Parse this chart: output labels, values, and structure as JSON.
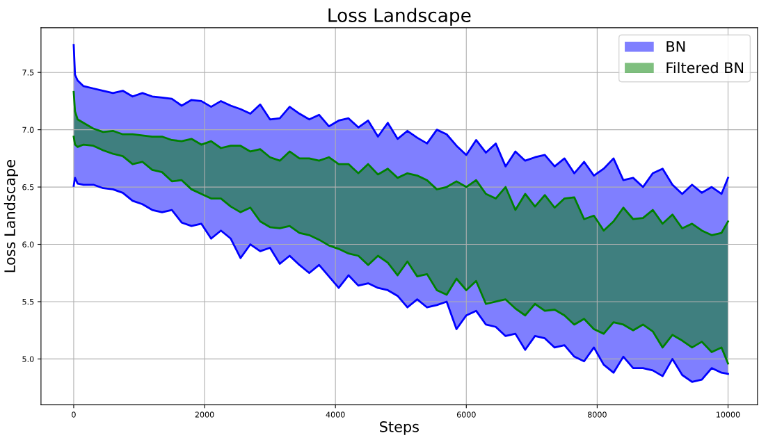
{
  "chart_data": {
    "type": "line",
    "title": "Loss Landscape",
    "xlabel": "Steps",
    "ylabel": "Loss Landscape",
    "xlim": [
      -500,
      10450
    ],
    "ylim": [
      4.6,
      7.89
    ],
    "xticks": [
      0,
      2000,
      4000,
      6000,
      8000,
      10000
    ],
    "yticks": [
      {
        "value": 5,
        "label": "5.0"
      },
      5.5,
      {
        "value": 6,
        "label": "6.0"
      },
      6.5,
      {
        "value": 7,
        "label": "7.0"
      },
      7.5
    ],
    "grid": true,
    "legend": "top right",
    "series": [
      {
        "name": "BN",
        "color": "#0000ff",
        "x": [
          0,
          20,
          60,
          150,
          300,
          450,
          600,
          750,
          900,
          1050,
          1200,
          1350,
          1500,
          1650,
          1800,
          1950,
          2100,
          2250,
          2400,
          2550,
          2700,
          2850,
          3000,
          3150,
          3300,
          3450,
          3600,
          3750,
          3900,
          4050,
          4200,
          4350,
          4500,
          4650,
          4800,
          4950,
          5100,
          5250,
          5400,
          5550,
          5700,
          5850,
          6000,
          6150,
          6300,
          6450,
          6600,
          6750,
          6900,
          7050,
          7200,
          7350,
          7500,
          7650,
          7800,
          7950,
          8100,
          8250,
          8400,
          8550,
          8700,
          8850,
          9000,
          9150,
          9300,
          9450,
          9600,
          9750,
          9900,
          10000
        ],
        "values": [
          7.74,
          7.48,
          7.43,
          7.38,
          7.36,
          7.34,
          7.32,
          7.34,
          7.29,
          7.32,
          7.29,
          7.28,
          7.27,
          7.21,
          7.26,
          7.25,
          7.2,
          7.25,
          7.21,
          7.18,
          7.14,
          7.22,
          7.09,
          7.1,
          7.2,
          7.14,
          7.09,
          7.13,
          7.03,
          7.08,
          7.1,
          7.02,
          7.08,
          6.94,
          7.06,
          6.92,
          6.99,
          6.93,
          6.88,
          7.0,
          6.96,
          6.86,
          6.78,
          6.91,
          6.8,
          6.88,
          6.68,
          6.81,
          6.73,
          6.76,
          6.78,
          6.68,
          6.75,
          6.62,
          6.72,
          6.6,
          6.66,
          6.75,
          6.56,
          6.58,
          6.5,
          6.62,
          6.66,
          6.52,
          6.44,
          6.52,
          6.45,
          6.5,
          6.44,
          6.58
        ],
        "upper": [
          7.74,
          7.48,
          7.43,
          7.38,
          7.36,
          7.34,
          7.32,
          7.34,
          7.29,
          7.32,
          7.29,
          7.28,
          7.27,
          7.21,
          7.26,
          7.25,
          7.2,
          7.25,
          7.21,
          7.18,
          7.14,
          7.22,
          7.09,
          7.1,
          7.2,
          7.14,
          7.09,
          7.13,
          7.03,
          7.08,
          7.1,
          7.02,
          7.08,
          6.94,
          7.06,
          6.92,
          6.99,
          6.93,
          6.88,
          7.0,
          6.96,
          6.86,
          6.78,
          6.91,
          6.8,
          6.88,
          6.68,
          6.81,
          6.73,
          6.76,
          6.78,
          6.68,
          6.75,
          6.62,
          6.72,
          6.6,
          6.66,
          6.75,
          6.56,
          6.58,
          6.5,
          6.62,
          6.66,
          6.52,
          6.44,
          6.52,
          6.45,
          6.5,
          6.44,
          6.58
        ],
        "lower": [
          6.51,
          6.58,
          6.53,
          6.52,
          6.52,
          6.49,
          6.48,
          6.45,
          6.38,
          6.35,
          6.3,
          6.28,
          6.3,
          6.19,
          6.16,
          6.18,
          6.05,
          6.12,
          6.05,
          5.88,
          6.0,
          5.94,
          5.97,
          5.83,
          5.9,
          5.82,
          5.75,
          5.82,
          5.72,
          5.62,
          5.73,
          5.64,
          5.66,
          5.62,
          5.6,
          5.55,
          5.45,
          5.52,
          5.45,
          5.47,
          5.5,
          5.26,
          5.38,
          5.42,
          5.3,
          5.28,
          5.2,
          5.22,
          5.08,
          5.2,
          5.18,
          5.1,
          5.12,
          5.02,
          4.98,
          5.1,
          4.95,
          4.88,
          5.02,
          4.92,
          4.92,
          4.9,
          4.85,
          5.0,
          4.86,
          4.8,
          4.82,
          4.92,
          4.88,
          4.87
        ]
      },
      {
        "color": "#0000ff",
        "x": [
          0,
          20,
          60,
          150,
          300,
          450,
          600,
          750,
          900,
          1050,
          1200,
          1350,
          1500,
          1650,
          1800,
          1950,
          2100,
          2250,
          2400,
          2550,
          2700,
          2850,
          3000,
          3150,
          3300,
          3450,
          3600,
          3750,
          3900,
          4050,
          4200,
          4350,
          4500,
          4650,
          4800,
          4950,
          5100,
          5250,
          5400,
          5550,
          5700,
          5850,
          6000,
          6150,
          6300,
          6450,
          6600,
          6750,
          6900,
          7050,
          7200,
          7350,
          7500,
          7650,
          7800,
          7950,
          8100,
          8250,
          8400,
          8550,
          8700,
          8850,
          9000,
          9150,
          9300,
          9450,
          9600,
          9750,
          9900,
          10000
        ],
        "values": [
          6.51,
          6.58,
          6.53,
          6.52,
          6.52,
          6.49,
          6.48,
          6.45,
          6.38,
          6.35,
          6.3,
          6.28,
          6.3,
          6.19,
          6.16,
          6.18,
          6.05,
          6.12,
          6.05,
          5.88,
          6.0,
          5.94,
          5.97,
          5.83,
          5.9,
          5.82,
          5.75,
          5.82,
          5.72,
          5.62,
          5.73,
          5.64,
          5.66,
          5.62,
          5.6,
          5.55,
          5.45,
          5.52,
          5.45,
          5.47,
          5.5,
          5.26,
          5.38,
          5.42,
          5.3,
          5.28,
          5.2,
          5.22,
          5.08,
          5.2,
          5.18,
          5.1,
          5.12,
          5.02,
          4.98,
          5.1,
          4.95,
          4.88,
          5.02,
          4.92,
          4.92,
          4.9,
          4.85,
          5.0,
          4.86,
          4.8,
          4.82,
          4.92,
          4.88,
          4.87
        ]
      },
      {
        "name": "Filtered BN",
        "color": "#008000",
        "x": [
          0,
          20,
          60,
          150,
          300,
          450,
          600,
          750,
          900,
          1050,
          1200,
          1350,
          1500,
          1650,
          1800,
          1950,
          2100,
          2250,
          2400,
          2550,
          2700,
          2850,
          3000,
          3150,
          3300,
          3450,
          3600,
          3750,
          3900,
          4050,
          4200,
          4350,
          4500,
          4650,
          4800,
          4950,
          5100,
          5250,
          5400,
          5550,
          5700,
          5850,
          6000,
          6150,
          6300,
          6450,
          6600,
          6750,
          6900,
          7050,
          7200,
          7350,
          7500,
          7650,
          7800,
          7950,
          8100,
          8250,
          8400,
          8550,
          8700,
          8850,
          9000,
          9150,
          9300,
          9450,
          9600,
          9750,
          9900,
          10000
        ],
        "values": [
          7.33,
          7.16,
          7.09,
          7.06,
          7.01,
          6.98,
          6.99,
          6.96,
          6.96,
          6.95,
          6.94,
          6.94,
          6.91,
          6.9,
          6.92,
          6.87,
          6.9,
          6.84,
          6.86,
          6.86,
          6.81,
          6.83,
          6.76,
          6.73,
          6.81,
          6.75,
          6.75,
          6.73,
          6.76,
          6.7,
          6.7,
          6.62,
          6.7,
          6.61,
          6.66,
          6.58,
          6.62,
          6.6,
          6.56,
          6.48,
          6.5,
          6.55,
          6.5,
          6.56,
          6.44,
          6.4,
          6.5,
          6.3,
          6.44,
          6.33,
          6.43,
          6.32,
          6.4,
          6.41,
          6.22,
          6.25,
          6.12,
          6.2,
          6.32,
          6.22,
          6.23,
          6.3,
          6.18,
          6.26,
          6.14,
          6.18,
          6.12,
          6.08,
          6.1,
          6.2
        ],
        "upper": [
          7.33,
          7.16,
          7.09,
          7.06,
          7.01,
          6.98,
          6.99,
          6.96,
          6.96,
          6.95,
          6.94,
          6.94,
          6.91,
          6.9,
          6.92,
          6.87,
          6.9,
          6.84,
          6.86,
          6.86,
          6.81,
          6.83,
          6.76,
          6.73,
          6.81,
          6.75,
          6.75,
          6.73,
          6.76,
          6.7,
          6.7,
          6.62,
          6.7,
          6.61,
          6.66,
          6.58,
          6.62,
          6.6,
          6.56,
          6.48,
          6.5,
          6.55,
          6.5,
          6.56,
          6.44,
          6.4,
          6.5,
          6.3,
          6.44,
          6.33,
          6.43,
          6.32,
          6.4,
          6.41,
          6.22,
          6.25,
          6.12,
          6.2,
          6.32,
          6.22,
          6.23,
          6.3,
          6.18,
          6.26,
          6.14,
          6.18,
          6.12,
          6.08,
          6.1,
          6.2
        ],
        "lower": [
          6.94,
          6.87,
          6.85,
          6.87,
          6.86,
          6.82,
          6.79,
          6.77,
          6.7,
          6.72,
          6.65,
          6.63,
          6.55,
          6.56,
          6.48,
          6.44,
          6.4,
          6.4,
          6.33,
          6.28,
          6.32,
          6.2,
          6.15,
          6.14,
          6.16,
          6.1,
          6.08,
          6.04,
          5.99,
          5.96,
          5.92,
          5.9,
          5.82,
          5.9,
          5.84,
          5.73,
          5.85,
          5.72,
          5.74,
          5.6,
          5.56,
          5.7,
          5.6,
          5.68,
          5.48,
          5.5,
          5.52,
          5.44,
          5.38,
          5.48,
          5.42,
          5.43,
          5.38,
          5.3,
          5.35,
          5.26,
          5.22,
          5.32,
          5.3,
          5.25,
          5.3,
          5.24,
          5.1,
          5.21,
          5.16,
          5.1,
          5.15,
          5.06,
          5.1,
          4.96
        ]
      },
      {
        "color": "#008000",
        "x": [
          0,
          20,
          60,
          150,
          300,
          450,
          600,
          750,
          900,
          1050,
          1200,
          1350,
          1500,
          1650,
          1800,
          1950,
          2100,
          2250,
          2400,
          2550,
          2700,
          2850,
          3000,
          3150,
          3300,
          3450,
          3600,
          3750,
          3900,
          4050,
          4200,
          4350,
          4500,
          4650,
          4800,
          4950,
          5100,
          5250,
          5400,
          5550,
          5700,
          5850,
          6000,
          6150,
          6300,
          6450,
          6600,
          6750,
          6900,
          7050,
          7200,
          7350,
          7500,
          7650,
          7800,
          7950,
          8100,
          8250,
          8400,
          8550,
          8700,
          8850,
          9000,
          9150,
          9300,
          9450,
          9600,
          9750,
          9900,
          10000
        ],
        "values": [
          6.94,
          6.87,
          6.85,
          6.87,
          6.86,
          6.82,
          6.79,
          6.77,
          6.7,
          6.72,
          6.65,
          6.63,
          6.55,
          6.56,
          6.48,
          6.44,
          6.4,
          6.4,
          6.33,
          6.28,
          6.32,
          6.2,
          6.15,
          6.14,
          6.16,
          6.1,
          6.08,
          6.04,
          5.99,
          5.96,
          5.92,
          5.9,
          5.82,
          5.9,
          5.84,
          5.73,
          5.85,
          5.72,
          5.74,
          5.6,
          5.56,
          5.7,
          5.6,
          5.68,
          5.48,
          5.5,
          5.52,
          5.44,
          5.38,
          5.48,
          5.42,
          5.43,
          5.38,
          5.3,
          5.35,
          5.26,
          5.22,
          5.32,
          5.3,
          5.25,
          5.3,
          5.24,
          5.1,
          5.21,
          5.16,
          5.1,
          5.15,
          5.06,
          5.1,
          4.96
        ]
      }
    ]
  }
}
